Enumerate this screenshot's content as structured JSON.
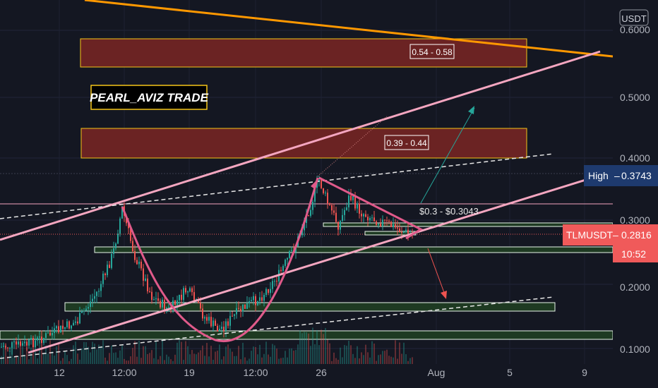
{
  "chart_data": {
    "type": "candlestick",
    "symbol": "TLMUSDT",
    "currency": "USDT",
    "brand": "PEARL_AVIZ TRADE",
    "y_axis": {
      "scale": "log",
      "ticks": [
        "0.1000",
        "0.2000",
        "0.3000",
        "0.4000",
        "0.5000",
        "0.6000"
      ]
    },
    "x_axis": {
      "ticks": [
        "12",
        "12:00",
        "19",
        "12:00",
        "26",
        "Aug",
        "5",
        "9"
      ]
    },
    "zones": [
      {
        "label": "0.54 - 0.58",
        "low": 0.54,
        "high": 0.58,
        "color": "#6b2323"
      },
      {
        "label": "0.39 - 0.44",
        "low": 0.39,
        "high": 0.44,
        "color": "#6b2323"
      }
    ],
    "annotation": "$0.3 - $0.3043",
    "high": {
      "label": "High",
      "value": "0.3743"
    },
    "last": {
      "label": "TLMUSDT",
      "value": "0.2816",
      "countdown": "10:52"
    },
    "colors": {
      "background": "#141722",
      "zone_border": "#f5c518",
      "channel": "#f4a6c0",
      "trend_orange": "#ff9800",
      "support_box": "#1e3a22",
      "high_tag": "#1e3a6e",
      "last_tag": "#f05a5a",
      "up_candle": "#26a69a",
      "down_candle": "#ef5350"
    }
  }
}
